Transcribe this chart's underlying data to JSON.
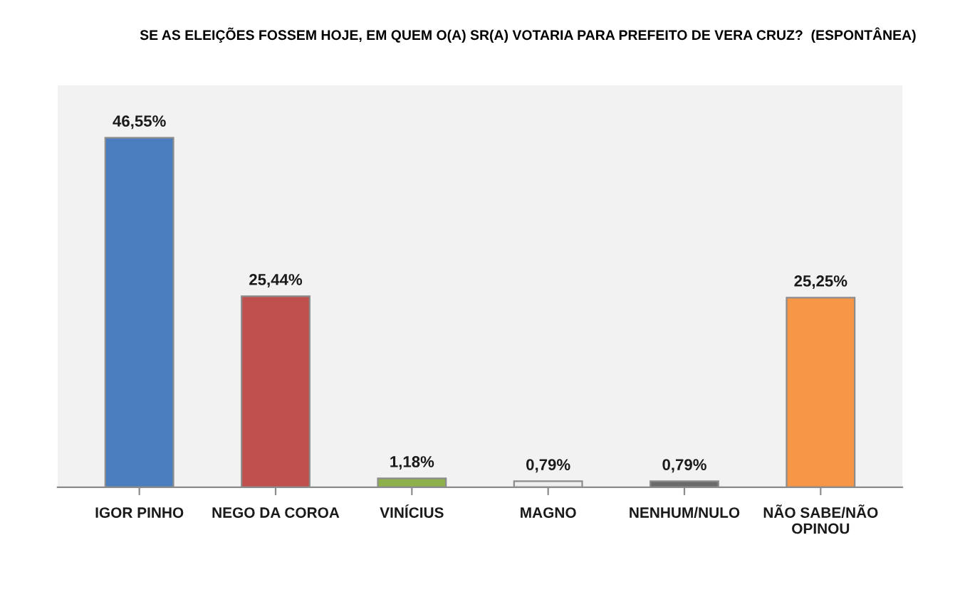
{
  "chart_data": {
    "type": "bar",
    "title": "SE AS ELEIÇÕES FOSSEM HOJE, EM QUEM O(A) SR(A) VOTARIA PARA PREFEITO DE VERA CRUZ?  (ESPONTÂNEA)",
    "categories": [
      "IGOR PINHO",
      "NEGO DA COROA",
      "VINÍCIUS",
      "MAGNO",
      "NENHUM/NULO",
      "NÃO SABE/NÃO OPINOU"
    ],
    "values": [
      46.55,
      25.44,
      1.18,
      0.79,
      0.79,
      25.25
    ],
    "colors": [
      "#4a7ebf",
      "#c0504d",
      "#8db04a",
      "#eeeeee",
      "#6b6b6b",
      "#f79646"
    ],
    "value_labels": [
      "46,55%",
      "25,44%",
      "1,18%",
      "0,79%",
      "0,79%",
      "25,25%"
    ],
    "tick_labels": "x",
    "grid": false,
    "legend": false
  }
}
